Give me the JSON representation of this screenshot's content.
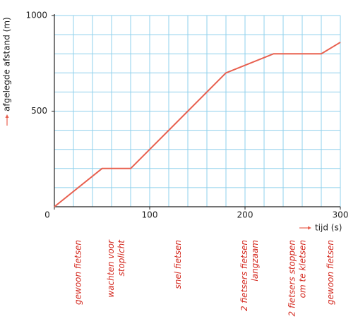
{
  "chart_data": {
    "type": "line",
    "x_label": "tijd (s)",
    "y_label": "afgelegde afstand (m)",
    "x": [
      0,
      50,
      80,
      180,
      230,
      280,
      300
    ],
    "series": [
      {
        "color": "#e8604f",
        "values": [
          0,
          200,
          200,
          700,
          800,
          800,
          860
        ]
      }
    ],
    "xlim": [
      0,
      300
    ],
    "ylim": [
      0,
      1000
    ],
    "xticks": [
      0,
      100,
      200,
      300
    ],
    "yticks": [
      500,
      1000
    ],
    "xgrid": [
      20,
      40,
      60,
      80,
      100,
      120,
      140,
      160,
      180,
      200,
      220,
      240,
      260,
      280,
      300
    ],
    "ygrid": [
      100,
      200,
      300,
      400,
      500,
      600,
      700,
      800,
      900,
      1000
    ],
    "grid_color": "#8fd0ec",
    "annotation_color": "#d42a20",
    "annotations": [
      [
        "gewoon fietsen"
      ],
      [
        "wachten voor",
        "stoplicht"
      ],
      [
        "snel fietsen"
      ],
      [
        "2 fietsers fietsen",
        "langzaam"
      ],
      [
        "2 fietsers stoppen",
        "om te kletsen"
      ],
      [
        "gewoon fietsen"
      ]
    ]
  }
}
